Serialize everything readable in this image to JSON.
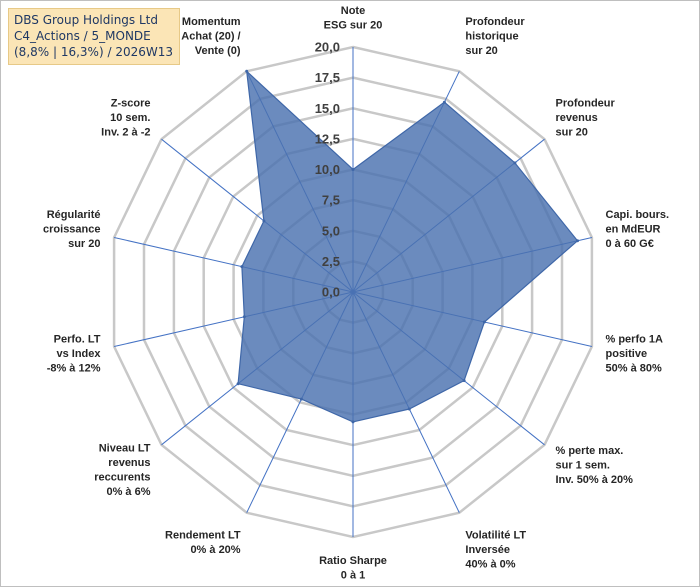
{
  "title": {
    "line1": "DBS Group Holdings Ltd",
    "line2": "C4_Actions / 5_MONDE",
    "line3": "(8,8% | 16,3%) / 2026W13"
  },
  "colors": {
    "grid": "#c8c8c8",
    "spoke": "#4472c4",
    "fill": "#4a72b0",
    "stroke": "#3f67a8"
  },
  "chart_data": {
    "type": "radar",
    "ylim": [
      0,
      20
    ],
    "ticks": [
      "0,0",
      "2,5",
      "5,0",
      "7,5",
      "10,0",
      "12,5",
      "15,0",
      "17,5",
      "20,0"
    ],
    "categories": [
      [
        "Note",
        "ESG sur 20"
      ],
      [
        "Profondeur",
        "historique",
        "sur 20"
      ],
      [
        "Profondeur",
        "revenus",
        "sur 20"
      ],
      [
        "Capi. bours.",
        "en MdEUR",
        "0 à 60 G€"
      ],
      [
        "% perfo 1A",
        "positive",
        "50% à 80%"
      ],
      [
        "% perte max.",
        "sur 1 sem.",
        "Inv. 50% à 20%"
      ],
      [
        "Volatilité LT",
        "Inversée",
        "40% à 0%"
      ],
      [
        "Ratio Sharpe",
        "0 à 1"
      ],
      [
        "Rendement LT",
        "0% à 20%"
      ],
      [
        "Niveau LT",
        "revenus",
        "reccurents",
        "0% à 6%"
      ],
      [
        "Perfo. LT",
        "vs Index",
        "-8% à 12%"
      ],
      [
        "Régularité",
        "croissance",
        "sur 20"
      ],
      [
        "Z-score",
        "10 sem.",
        "Inv. 2 à -2"
      ],
      [
        "Momentum",
        "Achat (20) /",
        "Vente (0)"
      ]
    ],
    "series": [
      {
        "values": [
          10.0,
          17.2,
          16.9,
          18.8,
          11.0,
          11.6,
          10.6,
          10.6,
          9.7,
          12.0,
          9.1,
          9.3,
          9.3,
          20.0
        ]
      }
    ],
    "grid": true,
    "legend": "none"
  }
}
